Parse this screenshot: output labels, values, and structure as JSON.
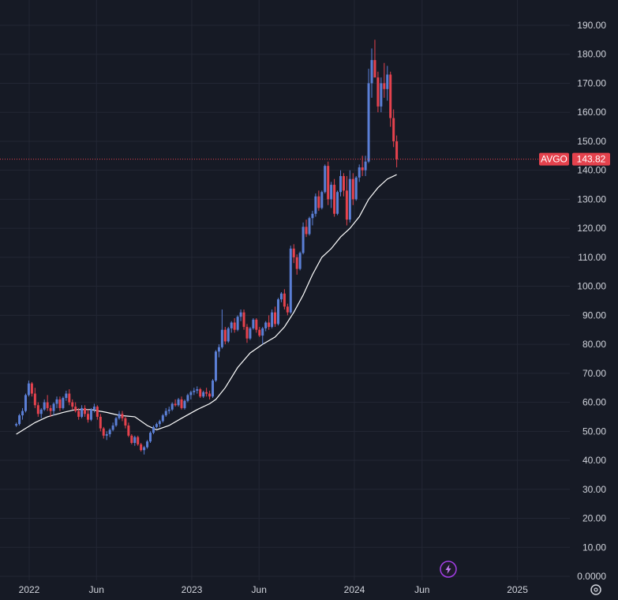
{
  "chart_data": {
    "type": "candlestick",
    "symbol": "AVGO",
    "last_price": "143.82",
    "y_ticks": [
      "190.00",
      "180.00",
      "170.00",
      "160.00",
      "150.00",
      "140.00",
      "130.00",
      "120.00",
      "110.00",
      "100.00",
      "90.00",
      "80.00",
      "70.00",
      "60.00",
      "50.00",
      "40.00",
      "30.00",
      "20.00",
      "10.00",
      "0.0000"
    ],
    "x_ticks": [
      "2022",
      "Jun",
      "2023",
      "Jun",
      "2024",
      "Jun",
      "2025"
    ],
    "ylim": [
      0,
      192
    ],
    "grid": true,
    "colors": {
      "background": "#161a25",
      "grid": "#232734",
      "up": "#5b7fd6",
      "down": "#e5424d",
      "moving_average": "#ffffff",
      "price_line": "#e5424d",
      "badge": "#e5424d",
      "axis_text": "#d1d4dc"
    },
    "candles": [
      [
        "2021-12-03",
        52,
        53,
        51.5,
        52.5
      ],
      [
        "2021-12-10",
        52.5,
        56,
        52,
        55.5
      ],
      [
        "2021-12-17",
        55.5,
        58,
        54,
        57
      ],
      [
        "2021-12-24",
        57,
        63,
        56.5,
        62.5
      ],
      [
        "2021-12-31",
        62.5,
        67.5,
        62,
        66.5
      ],
      [
        "2022-01-07",
        66.5,
        67,
        62,
        63
      ],
      [
        "2022-01-14",
        63,
        65,
        58,
        59
      ],
      [
        "2022-01-21",
        59,
        60,
        55,
        56
      ],
      [
        "2022-01-28",
        56,
        58,
        54.5,
        57.5
      ],
      [
        "2022-02-04",
        57.5,
        61,
        57,
        60
      ],
      [
        "2022-02-11",
        60,
        62.5,
        57,
        58
      ],
      [
        "2022-02-18",
        58,
        59,
        55,
        57
      ],
      [
        "2022-02-25",
        57,
        60,
        55.5,
        59.5
      ],
      [
        "2022-03-04",
        59.5,
        62,
        58,
        61
      ],
      [
        "2022-03-11",
        61,
        62,
        57,
        58
      ],
      [
        "2022-03-18",
        58,
        62,
        57.5,
        61.5
      ],
      [
        "2022-03-25",
        61.5,
        64,
        60.5,
        63
      ],
      [
        "2022-04-01",
        63,
        64.5,
        59,
        60
      ],
      [
        "2022-04-08",
        60,
        61,
        57.5,
        58.5
      ],
      [
        "2022-04-15",
        58.5,
        60,
        56.5,
        57
      ],
      [
        "2022-04-22",
        57,
        58,
        54,
        55
      ],
      [
        "2022-04-29",
        55,
        59,
        54.5,
        58
      ],
      [
        "2022-05-06",
        58,
        59,
        55,
        56
      ],
      [
        "2022-05-13",
        56,
        57.5,
        53,
        54
      ],
      [
        "2022-05-20",
        54,
        58,
        53.5,
        57.5
      ],
      [
        "2022-05-27",
        57.5,
        59.5,
        56.5,
        58.5
      ],
      [
        "2022-06-03",
        58.5,
        59,
        54,
        55
      ],
      [
        "2022-06-10",
        55,
        56,
        50,
        51
      ],
      [
        "2022-06-17",
        51,
        51.5,
        47.5,
        48.5
      ],
      [
        "2022-06-24",
        48.5,
        50,
        47,
        49
      ],
      [
        "2022-07-01",
        49,
        51,
        48,
        50.5
      ],
      [
        "2022-07-08",
        50.5,
        53,
        50,
        52
      ],
      [
        "2022-07-15",
        52,
        55,
        51.5,
        54.5
      ],
      [
        "2022-07-22",
        54.5,
        57,
        54,
        56
      ],
      [
        "2022-07-29",
        56,
        57,
        53.5,
        54.5
      ],
      [
        "2022-08-05",
        54.5,
        55,
        51,
        52
      ],
      [
        "2022-08-12",
        52,
        53,
        48,
        48.5
      ],
      [
        "2022-08-19",
        48.5,
        49,
        45.5,
        46
      ],
      [
        "2022-08-26",
        46,
        48.5,
        45,
        48
      ],
      [
        "2022-09-02",
        48,
        48.5,
        45,
        45.5
      ],
      [
        "2022-09-09",
        45.5,
        46,
        43,
        43.5
      ],
      [
        "2022-09-16",
        43.5,
        45,
        42,
        44.5
      ],
      [
        "2022-09-23",
        44.5,
        47,
        44,
        46.5
      ],
      [
        "2022-09-30",
        46.5,
        50,
        46,
        49.5
      ],
      [
        "2022-10-07",
        49.5,
        52,
        49,
        51.5
      ],
      [
        "2022-10-14",
        51.5,
        53,
        51,
        52.5
      ],
      [
        "2022-10-21",
        52.5,
        54,
        51.5,
        53.5
      ],
      [
        "2022-10-28",
        53.5,
        56,
        53,
        55.5
      ],
      [
        "2022-11-04",
        55.5,
        58,
        55,
        57
      ],
      [
        "2022-11-11",
        57,
        58.5,
        56,
        57.5
      ],
      [
        "2022-11-18",
        57.5,
        60,
        57,
        59.5
      ],
      [
        "2022-11-25",
        59.5,
        61,
        58.5,
        59
      ],
      [
        "2022-12-02",
        59,
        61.5,
        58.5,
        61
      ],
      [
        "2022-12-09",
        61,
        62,
        57.5,
        58
      ],
      [
        "2022-12-16",
        58,
        61,
        57.5,
        60.5
      ],
      [
        "2022-12-23",
        60.5,
        63,
        60,
        62.5
      ],
      [
        "2022-12-30",
        62.5,
        64,
        61,
        63.5
      ],
      [
        "2023-01-06",
        63.5,
        65,
        62.5,
        64
      ],
      [
        "2023-01-13",
        64,
        65.5,
        63,
        64.5
      ],
      [
        "2023-01-20",
        64.5,
        65,
        61.5,
        62
      ],
      [
        "2023-01-27",
        62,
        64,
        61.5,
        63.5
      ],
      [
        "2023-02-03",
        63.5,
        65,
        62,
        63
      ],
      [
        "2023-02-10",
        63,
        64,
        61,
        62
      ],
      [
        "2023-02-17",
        62,
        68,
        61.5,
        67.5
      ],
      [
        "2023-02-24",
        67.5,
        78,
        67,
        77.5
      ],
      [
        "2023-03-03",
        77.5,
        80,
        75.5,
        79
      ],
      [
        "2023-03-10",
        79,
        92,
        78.5,
        85
      ],
      [
        "2023-03-17",
        85,
        86,
        80,
        81
      ],
      [
        "2023-03-24",
        81,
        86,
        80.5,
        85.5
      ],
      [
        "2023-03-31",
        85.5,
        88,
        84,
        87.5
      ],
      [
        "2023-04-07",
        87.5,
        89,
        84,
        85
      ],
      [
        "2023-04-14",
        85,
        90,
        84.5,
        89.5
      ],
      [
        "2023-04-21",
        89.5,
        92,
        88,
        91
      ],
      [
        "2023-04-28",
        91,
        92,
        85,
        86
      ],
      [
        "2023-05-05",
        86,
        87,
        80.5,
        82
      ],
      [
        "2023-05-12",
        82,
        86,
        81.5,
        85.5
      ],
      [
        "2023-05-19",
        85.5,
        89,
        85,
        88.5
      ],
      [
        "2023-05-26",
        88.5,
        89,
        84,
        85
      ],
      [
        "2023-06-02",
        85,
        86,
        82.5,
        83
      ],
      [
        "2023-06-09",
        83,
        86,
        80,
        85.5
      ],
      [
        "2023-06-16",
        85.5,
        88,
        84.5,
        87.5
      ],
      [
        "2023-06-23",
        87.5,
        90,
        85,
        86
      ],
      [
        "2023-06-30",
        86,
        92,
        85.5,
        91
      ],
      [
        "2023-07-07",
        91,
        93,
        86,
        87
      ],
      [
        "2023-07-14",
        87,
        96,
        86.5,
        95.5
      ],
      [
        "2023-07-21",
        95.5,
        98,
        94.5,
        97.5
      ],
      [
        "2023-07-28",
        97.5,
        99,
        92,
        93
      ],
      [
        "2023-08-04",
        93,
        94,
        90,
        91
      ],
      [
        "2023-08-11",
        91,
        114,
        90.5,
        113
      ],
      [
        "2023-08-18",
        113,
        114.5,
        108,
        110
      ],
      [
        "2023-08-25",
        110,
        111,
        104,
        106
      ],
      [
        "2023-09-01",
        106,
        112,
        105.5,
        111.5
      ],
      [
        "2023-09-08",
        111.5,
        122,
        111,
        120.5
      ],
      [
        "2023-09-15",
        120.5,
        123,
        117,
        118
      ],
      [
        "2023-09-22",
        118,
        124,
        117.5,
        123.5
      ],
      [
        "2023-09-29",
        123.5,
        126,
        121,
        125
      ],
      [
        "2023-10-06",
        125,
        132,
        124,
        131
      ],
      [
        "2023-10-13",
        131,
        133,
        126,
        127
      ],
      [
        "2023-10-20",
        127,
        133,
        126.5,
        132.5
      ],
      [
        "2023-10-27",
        132.5,
        142,
        132,
        141.5
      ],
      [
        "2023-11-03",
        141.5,
        143,
        128,
        130
      ],
      [
        "2023-11-10",
        130,
        136,
        127,
        135
      ],
      [
        "2023-11-17",
        135,
        137,
        124,
        125
      ],
      [
        "2023-11-24",
        125,
        133,
        124.5,
        132.5
      ],
      [
        "2023-12-01",
        132.5,
        140,
        131,
        138
      ],
      [
        "2023-12-08",
        138,
        139,
        131,
        133
      ],
      [
        "2023-12-15",
        133,
        138,
        121,
        123
      ],
      [
        "2023-12-22",
        123,
        140,
        122,
        137
      ],
      [
        "2023-12-29",
        137,
        139,
        128,
        130
      ],
      [
        "2024-01-05",
        130,
        138,
        129.5,
        137.5
      ],
      [
        "2024-01-12",
        137.5,
        142,
        136,
        141
      ],
      [
        "2024-01-19",
        141,
        145,
        138,
        140
      ],
      [
        "2024-01-26",
        140,
        145,
        138,
        143
      ],
      [
        "2024-02-02",
        143,
        175,
        142.5,
        170
      ],
      [
        "2024-02-09",
        170,
        182,
        165,
        178
      ],
      [
        "2024-02-16",
        178,
        185,
        172,
        172
      ],
      [
        "2024-02-23",
        172,
        174,
        160,
        162
      ],
      [
        "2024-03-01",
        162,
        172,
        160,
        170
      ],
      [
        "2024-03-08",
        170,
        177,
        165,
        168
      ],
      [
        "2024-03-15",
        168,
        176,
        164,
        173
      ],
      [
        "2024-03-22",
        173,
        174,
        155,
        158
      ],
      [
        "2024-03-29",
        158,
        161,
        148,
        150
      ],
      [
        "2024-04-05",
        150,
        152,
        141,
        143.82
      ]
    ],
    "moving_average": [
      [
        "2021-12-03",
        49
      ],
      [
        "2022-01-14",
        53
      ],
      [
        "2022-02-11",
        55
      ],
      [
        "2022-03-18",
        56.5
      ],
      [
        "2022-04-15",
        57.5
      ],
      [
        "2022-05-20",
        57.5
      ],
      [
        "2022-06-24",
        56.5
      ],
      [
        "2022-07-22",
        55.5
      ],
      [
        "2022-08-26",
        55
      ],
      [
        "2022-09-23",
        52
      ],
      [
        "2022-10-14",
        50.5
      ],
      [
        "2022-11-11",
        52
      ],
      [
        "2022-12-09",
        54.5
      ],
      [
        "2023-01-13",
        57.5
      ],
      [
        "2023-02-10",
        59.5
      ],
      [
        "2023-02-24",
        61
      ],
      [
        "2023-03-17",
        65
      ],
      [
        "2023-04-14",
        72
      ],
      [
        "2023-05-12",
        77
      ],
      [
        "2023-06-09",
        80
      ],
      [
        "2023-07-07",
        82.5
      ],
      [
        "2023-07-28",
        86
      ],
      [
        "2023-08-18",
        91
      ],
      [
        "2023-09-08",
        97
      ],
      [
        "2023-09-29",
        104
      ],
      [
        "2023-10-20",
        110
      ],
      [
        "2023-11-10",
        113
      ],
      [
        "2023-12-01",
        117
      ],
      [
        "2023-12-22",
        120
      ],
      [
        "2024-01-12",
        124
      ],
      [
        "2024-02-02",
        130
      ],
      [
        "2024-02-23",
        134
      ],
      [
        "2024-03-15",
        137
      ],
      [
        "2024-04-05",
        138.5
      ]
    ]
  },
  "ui": {
    "lightning_icon": "lightning-icon",
    "settings_icon": "gear-icon"
  }
}
